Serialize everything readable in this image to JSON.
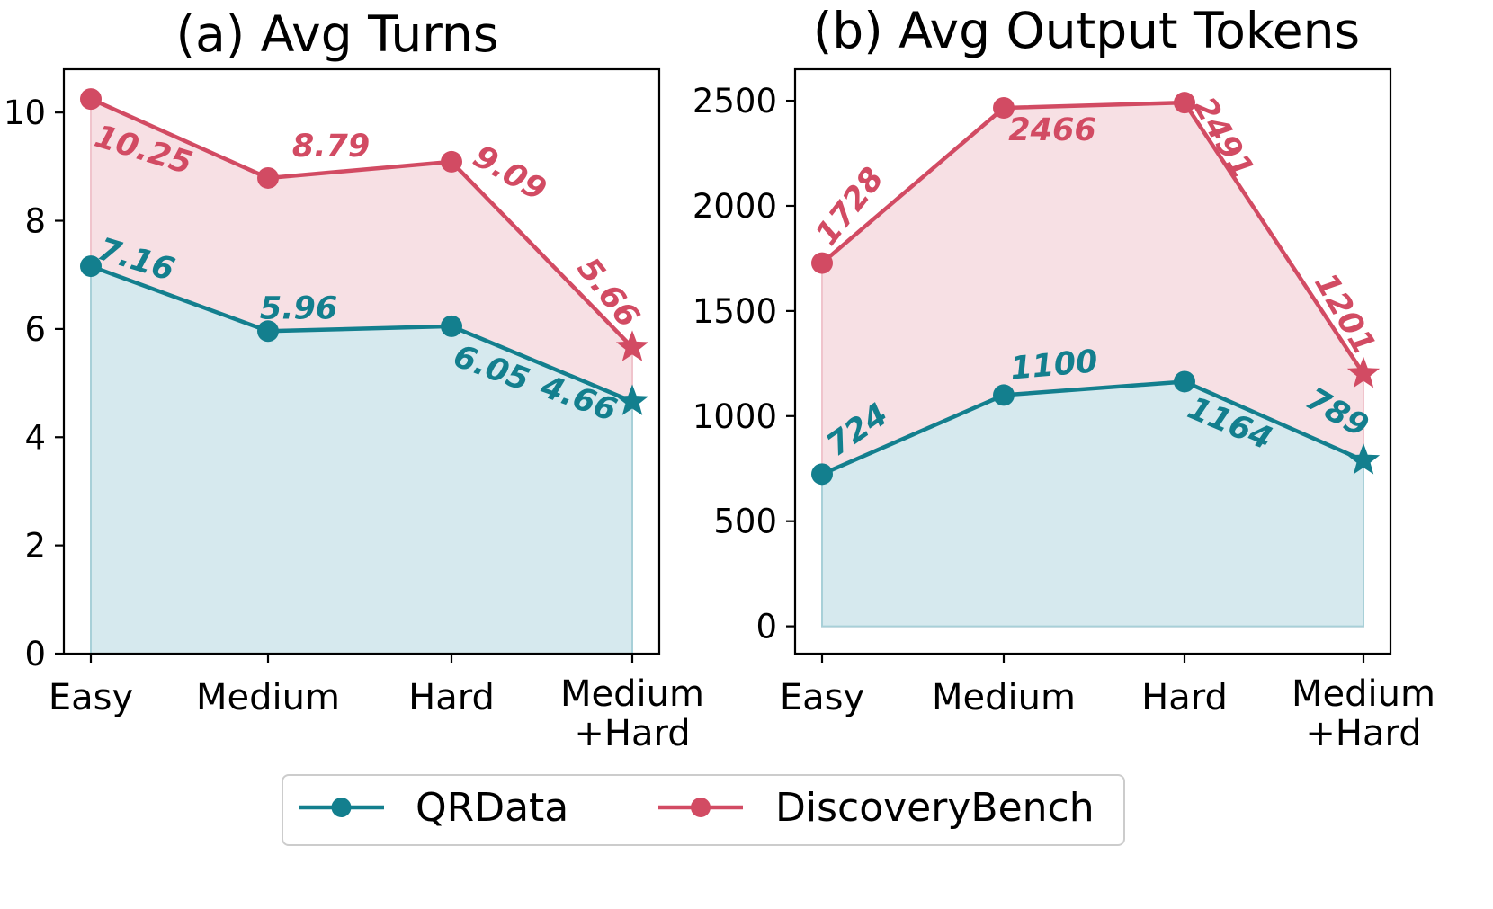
{
  "chart_data": [
    {
      "type": "line",
      "title": "(a) Avg Turns",
      "categories": [
        "Easy",
        "Medium",
        "Hard",
        "Medium\n+Hard"
      ],
      "ylim": [
        0,
        10.8
      ],
      "yticks": [
        0,
        2,
        4,
        6,
        8,
        10
      ],
      "grid": false,
      "series": [
        {
          "name": "QRData",
          "color": "#137f8e",
          "values": [
            7.16,
            5.96,
            6.05,
            4.66
          ],
          "labels": [
            "7.16",
            "5.96",
            "6.05",
            "4.66"
          ]
        },
        {
          "name": "DiscoveryBench",
          "color": "#d24b63",
          "values": [
            10.25,
            8.79,
            9.09,
            5.66
          ],
          "labels": [
            "10.25",
            "8.79",
            "9.09",
            "5.66"
          ]
        }
      ]
    },
    {
      "type": "line",
      "title": "(b) Avg Output Tokens",
      "categories": [
        "Easy",
        "Medium",
        "Hard",
        "Medium\n+Hard"
      ],
      "ylim": [
        -130,
        2650
      ],
      "yticks": [
        0,
        500,
        1000,
        1500,
        2000,
        2500
      ],
      "grid": false,
      "series": [
        {
          "name": "QRData",
          "color": "#137f8e",
          "values": [
            724,
            1100,
            1164,
            789
          ],
          "labels": [
            "724",
            "1100",
            "1164",
            "789"
          ]
        },
        {
          "name": "DiscoveryBench",
          "color": "#d24b63",
          "values": [
            1728,
            2466,
            2491,
            1201
          ],
          "labels": [
            "1728",
            "2466",
            "2491",
            "1201"
          ]
        }
      ]
    }
  ],
  "legend": {
    "placement": "bottom-center",
    "items": [
      {
        "name": "QRData",
        "color": "#137f8e"
      },
      {
        "name": "DiscoveryBench",
        "color": "#d24b63"
      }
    ]
  },
  "colors": {
    "qrdata": "#137f8e",
    "discoverybench": "#d24b63",
    "qrdata_fill": "#d6e9ee",
    "discoverybench_fill": "#f7e0e4"
  }
}
